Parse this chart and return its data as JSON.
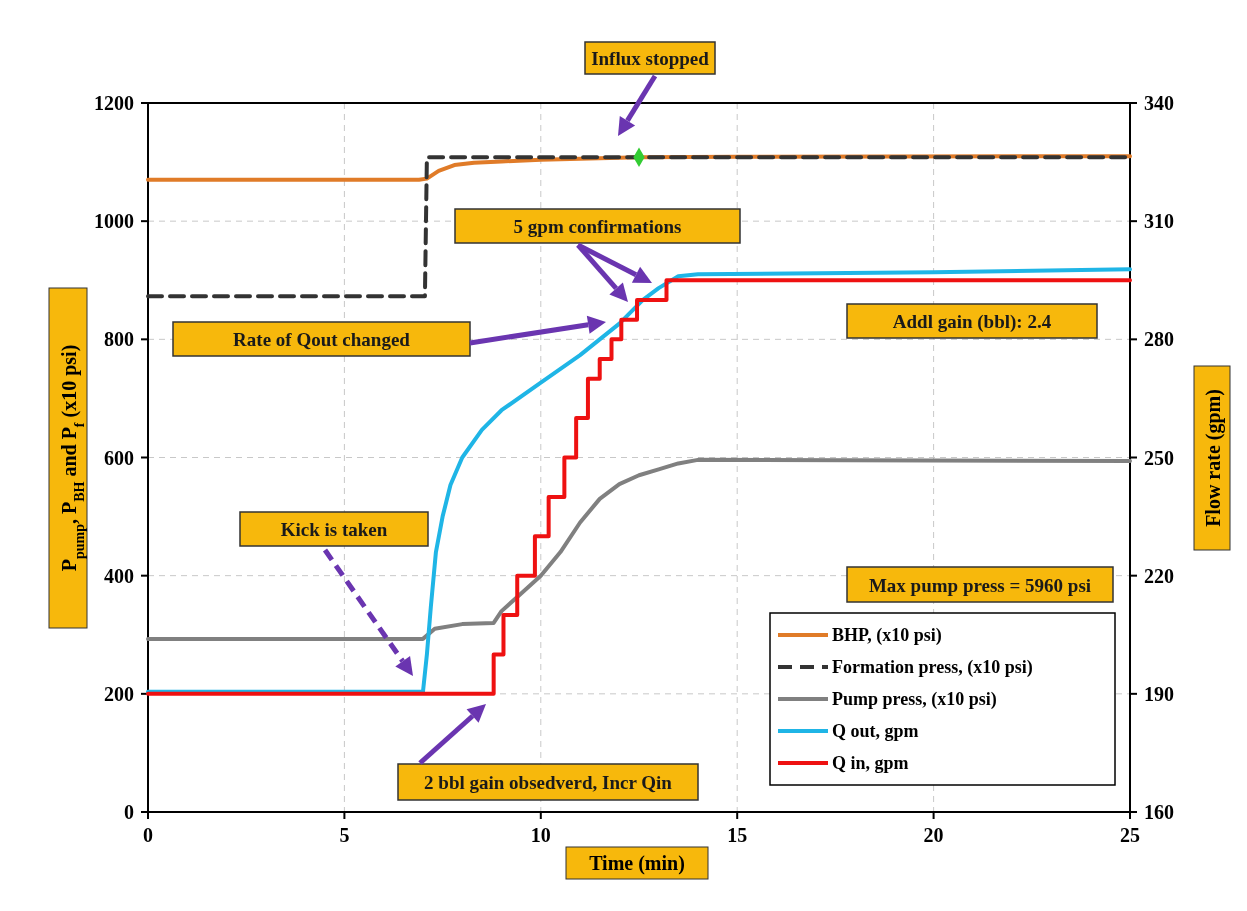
{
  "chart_data": {
    "type": "line",
    "xlabel": "Time (min)",
    "ylabel": "P$_{pump}$, P$_{BH}$ and P$_{f}$ (x10 psi)",
    "y2label": "Flow rate (gpm)",
    "xlim": [
      0,
      25
    ],
    "xticks": [
      0,
      5,
      10,
      15,
      20,
      25
    ],
    "ylim": [
      0,
      1200
    ],
    "yticks": [
      0,
      200,
      400,
      600,
      800,
      1000,
      1200
    ],
    "y2lim": [
      160,
      340
    ],
    "y2ticks": [
      160,
      190,
      220,
      250,
      280,
      310,
      340
    ],
    "grid": true,
    "legend": "bottom right",
    "marker": "none",
    "series": [
      {
        "name": "BHP, (x10 psi)",
        "color": "#e07b28",
        "x": [
          0,
          6.9,
          7.1,
          7.4,
          7.8,
          8.3,
          9,
          10,
          12.5,
          15,
          25
        ],
        "values": [
          1070,
          1070,
          1072,
          1085,
          1095,
          1099,
          1101,
          1104,
          1108,
          1109,
          1110
        ]
      },
      {
        "name": "Formation press, (x10 psi)",
        "color": "#333333",
        "line_style": "dashed",
        "x": [
          0,
          7.05,
          7.1,
          25
        ],
        "values": [
          873,
          873,
          1108,
          1108
        ]
      },
      {
        "name": "Pump press, (x10 psi)",
        "color": "#808080",
        "x": [
          0,
          7,
          7.3,
          8,
          8.8,
          9,
          9.5,
          10,
          10.5,
          11,
          11.5,
          12,
          12.5,
          13,
          13.5,
          14,
          25
        ],
        "values": [
          293,
          293,
          310,
          318,
          320,
          340,
          370,
          400,
          440,
          490,
          530,
          555,
          570,
          580,
          590,
          596,
          594
        ]
      },
      {
        "name": "Q out, gpm",
        "color": "#1fb5e6",
        "axis": "y2",
        "x": [
          0,
          7,
          7.1,
          7.2,
          7.33,
          7.5,
          7.7,
          8,
          8.5,
          9,
          10,
          11,
          12,
          12.6,
          13,
          13.5,
          14,
          20,
          25
        ],
        "values": [
          190.5,
          190.5,
          200,
          212,
          226,
          235,
          243,
          250,
          257,
          262,
          269,
          276,
          284,
          290,
          293,
          296,
          296.5,
          297,
          297.8
        ]
      },
      {
        "name": "Q in, gpm",
        "color": "#ee1111",
        "type": "step",
        "axis": "y2",
        "x": [
          0,
          8.8,
          9.05,
          9.4,
          9.85,
          10.2,
          10.6,
          10.9,
          11.2,
          11.5,
          11.8,
          12.05,
          12.45,
          13.2,
          25
        ],
        "values": [
          190,
          200,
          210,
          220,
          230,
          240,
          250,
          260,
          270,
          275,
          280,
          285,
          290,
          295,
          295
        ]
      },
      {
        "type": "scatter",
        "marker": "diamond",
        "color": "#33cc33",
        "x": [
          12.5
        ],
        "values": [
          1108
        ]
      }
    ],
    "annotations": [
      "Influx stopped",
      "5 gpm confirmations",
      "Rate of Qout changed",
      "Addl gain (bbl): 2.4",
      "Max pump press = 5960 psi",
      "Kick is taken",
      "2 bbl gain obsedverd, Incr Qin"
    ]
  }
}
